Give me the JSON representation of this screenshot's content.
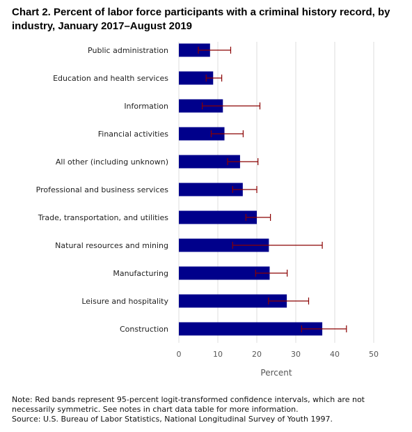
{
  "chart_data": {
    "type": "bar",
    "orientation": "horizontal",
    "title": "Chart 2. Percent of labor force participants with a criminal history record, by industry, January 2017–August 2019",
    "xlabel": "Percent",
    "ylabel": "",
    "xlim": [
      0,
      50
    ],
    "xticks": [
      0,
      10,
      20,
      30,
      40,
      50
    ],
    "grid": true,
    "categories": [
      "Public administration",
      "Education and health services",
      "Information",
      "Financial activities",
      "All other (including unknown)",
      "Professional and business services",
      "Trade, transportation, and utilities",
      "Natural resources and mining",
      "Manufacturing",
      "Leisure and hospitality",
      "Construction"
    ],
    "values": [
      8.0,
      8.8,
      11.3,
      11.7,
      15.7,
      16.4,
      20.0,
      23.1,
      23.3,
      27.7,
      36.8
    ],
    "ci_lower": [
      5.0,
      7.0,
      6.0,
      8.3,
      12.5,
      13.8,
      17.2,
      13.8,
      19.7,
      23.0,
      31.5
    ],
    "ci_upper": [
      13.3,
      11.0,
      20.8,
      16.5,
      20.3,
      20.0,
      23.5,
      36.8,
      27.8,
      33.3,
      43.0
    ],
    "colors": {
      "bar": "#00008b",
      "error_band": "#8b0000",
      "grid": "#dddddd"
    }
  },
  "notes": {
    "note": "Note: Red bands represent 95-percent logit-transformed confidence intervals, which are not necessarily symmetric. See notes in chart data table for more information.",
    "source": "Source: U.S. Bureau of Labor Statistics, National Longitudinal Survey of Youth 1997."
  }
}
